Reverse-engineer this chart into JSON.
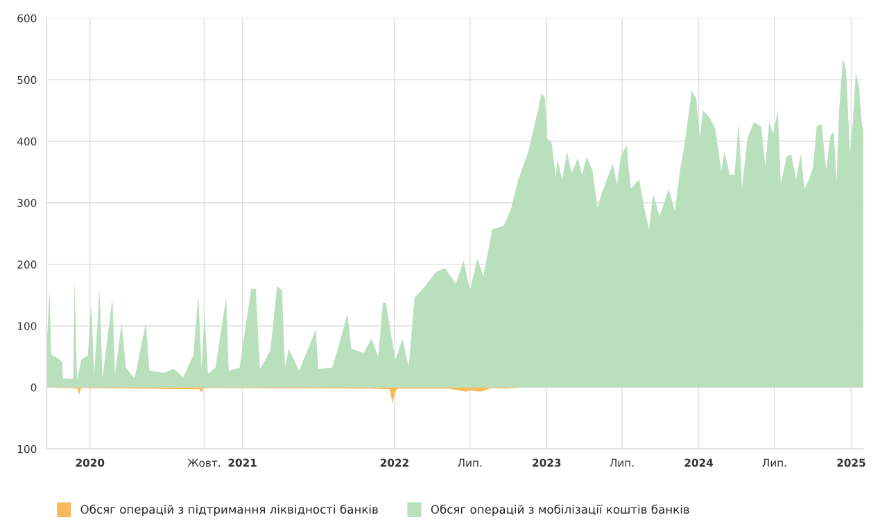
{
  "chart_data": {
    "type": "area",
    "xlim": [
      "2019-09-19",
      "2025-01-30"
    ],
    "xticks": [
      {
        "value": "2020-01-01",
        "label": "2020"
      },
      {
        "value": "2020-10-01",
        "label": "Жовт."
      },
      {
        "value": "2021-01-01",
        "label": "2021"
      },
      {
        "value": "2022-01-01",
        "label": "2022"
      },
      {
        "value": "2022-07-01",
        "label": "Лип."
      },
      {
        "value": "2023-01-01",
        "label": "2023"
      },
      {
        "value": "2023-07-01",
        "label": "Лип."
      },
      {
        "value": "2024-01-01",
        "label": "2024"
      },
      {
        "value": "2024-07-01",
        "label": "Лип."
      },
      {
        "value": "2025-01-01",
        "label": "2025"
      }
    ],
    "ylim": [
      -100,
      600
    ],
    "yticks": [
      {
        "value": -100,
        "label": "100"
      },
      0,
      100,
      200,
      300,
      400,
      500,
      600
    ],
    "grid": true,
    "legend": "bottom",
    "series": [
      {
        "name": "Обсяг операцій з підтримання ліквідності банків",
        "color": "#f8b95a",
        "x": [
          "2019-09-19",
          "2019-12-02",
          "2019-12-06",
          "2019-12-11",
          "2020-04-17",
          "2020-09-19",
          "2020-09-25",
          "2020-09-30",
          "2021-11-04",
          "2021-12-20",
          "2021-12-27",
          "2022-01-03",
          "2022-01-10",
          "2022-05-10",
          "2022-06-22",
          "2022-07-01",
          "2022-07-27",
          "2022-08-23",
          "2022-09-27",
          "2022-11-01",
          "2025-01-30"
        ],
        "values": [
          0,
          -2,
          -12,
          -1,
          -2,
          -3,
          -8,
          -1,
          -2,
          -3,
          -26,
          -6,
          -2,
          -2,
          -7,
          -5,
          -7,
          -1,
          -2,
          0,
          0
        ]
      },
      {
        "name": "Обсяг операцій з мобілізації коштів банків",
        "color": "#b8e0bc",
        "x": [
          "2019-09-19",
          "2019-09-26",
          "2019-09-30",
          "2019-10-12",
          "2019-10-26",
          "2019-10-28",
          "2019-11-22",
          "2019-11-25",
          "2019-12-01",
          "2019-12-11",
          "2019-12-27",
          "2020-01-04",
          "2020-01-11",
          "2020-01-24",
          "2020-01-31",
          "2020-02-24",
          "2020-03-01",
          "2020-03-17",
          "2020-03-27",
          "2020-04-17",
          "2020-05-14",
          "2020-05-23",
          "2020-06-27",
          "2020-07-20",
          "2020-08-12",
          "2020-09-05",
          "2020-09-17",
          "2020-09-25",
          "2020-10-02",
          "2020-10-10",
          "2020-10-28",
          "2020-11-23",
          "2020-11-29",
          "2020-12-25",
          "2021-01-22",
          "2021-02-02",
          "2021-02-12",
          "2021-03-09",
          "2021-03-25",
          "2021-04-06",
          "2021-04-13",
          "2021-04-22",
          "2021-05-17",
          "2021-06-26",
          "2021-07-02",
          "2021-08-04",
          "2021-08-18",
          "2021-09-10",
          "2021-09-19",
          "2021-10-19",
          "2021-11-07",
          "2021-11-23",
          "2021-12-04",
          "2021-12-11",
          "2022-01-03",
          "2022-01-20",
          "2022-02-04",
          "2022-02-18",
          "2022-03-11",
          "2022-04-11",
          "2022-05-02",
          "2022-05-28",
          "2022-06-16",
          "2022-07-01",
          "2022-07-19",
          "2022-08-02",
          "2022-08-23",
          "2022-09-20",
          "2022-10-07",
          "2022-10-25",
          "2022-11-18",
          "2022-12-11",
          "2022-12-20",
          "2022-12-28",
          "2023-01-02",
          "2023-01-13",
          "2023-01-23",
          "2023-01-27",
          "2023-02-07",
          "2023-02-19",
          "2023-03-02",
          "2023-03-17",
          "2023-03-27",
          "2023-04-07",
          "2023-04-21",
          "2023-05-03",
          "2023-05-13",
          "2023-06-09",
          "2023-06-19",
          "2023-06-28",
          "2023-07-12",
          "2023-07-22",
          "2023-08-11",
          "2023-08-23",
          "2023-09-04",
          "2023-09-12",
          "2023-09-15",
          "2023-09-29",
          "2023-10-21",
          "2023-11-05",
          "2023-11-17",
          "2023-11-28",
          "2023-12-15",
          "2023-12-26",
          "2024-01-04",
          "2024-01-11",
          "2024-01-27",
          "2024-02-10",
          "2024-02-24",
          "2024-03-03",
          "2024-03-16",
          "2024-03-27",
          "2024-04-06",
          "2024-04-14",
          "2024-04-27",
          "2024-05-12",
          "2024-05-30",
          "2024-06-09",
          "2024-06-18",
          "2024-06-28",
          "2024-07-09",
          "2024-07-16",
          "2024-07-30",
          "2024-08-10",
          "2024-08-22",
          "2024-09-02",
          "2024-09-11",
          "2024-09-22",
          "2024-10-02",
          "2024-10-10",
          "2024-10-22",
          "2024-11-02",
          "2024-11-12",
          "2024-11-20",
          "2024-11-27",
          "2024-12-03",
          "2024-12-12",
          "2024-12-20",
          "2024-12-29",
          "2025-01-05",
          "2025-01-12",
          "2025-01-20",
          "2025-01-27",
          "2025-01-30"
        ],
        "values": [
          67,
          158,
          53,
          49,
          42,
          15,
          14,
          175,
          11,
          45,
          52,
          138,
          22,
          158,
          15,
          146,
          22,
          105,
          32,
          15,
          105,
          27,
          24,
          30,
          17,
          52,
          150,
          27,
          124,
          22,
          32,
          146,
          27,
          32,
          161,
          160,
          30,
          60,
          165,
          158,
          32,
          63,
          27,
          94,
          30,
          32,
          63,
          120,
          63,
          56,
          79,
          49,
          138,
          138,
          45,
          79,
          34,
          146,
          161,
          188,
          194,
          169,
          206,
          158,
          210,
          180,
          256,
          263,
          289,
          338,
          383,
          450,
          479,
          470,
          405,
          398,
          341,
          371,
          338,
          383,
          349,
          373,
          345,
          375,
          353,
          293,
          315,
          364,
          330,
          375,
          394,
          323,
          338,
          293,
          256,
          308,
          312,
          278,
          323,
          286,
          353,
          394,
          482,
          470,
          405,
          450,
          439,
          420,
          353,
          383,
          345,
          345,
          431,
          323,
          405,
          431,
          424,
          360,
          431,
          413,
          450,
          330,
          375,
          379,
          338,
          379,
          323,
          338,
          360,
          424,
          428,
          353,
          409,
          416,
          334,
          450,
          535,
          514,
          379,
          431,
          512,
          488,
          424,
          424
        ]
      }
    ]
  }
}
